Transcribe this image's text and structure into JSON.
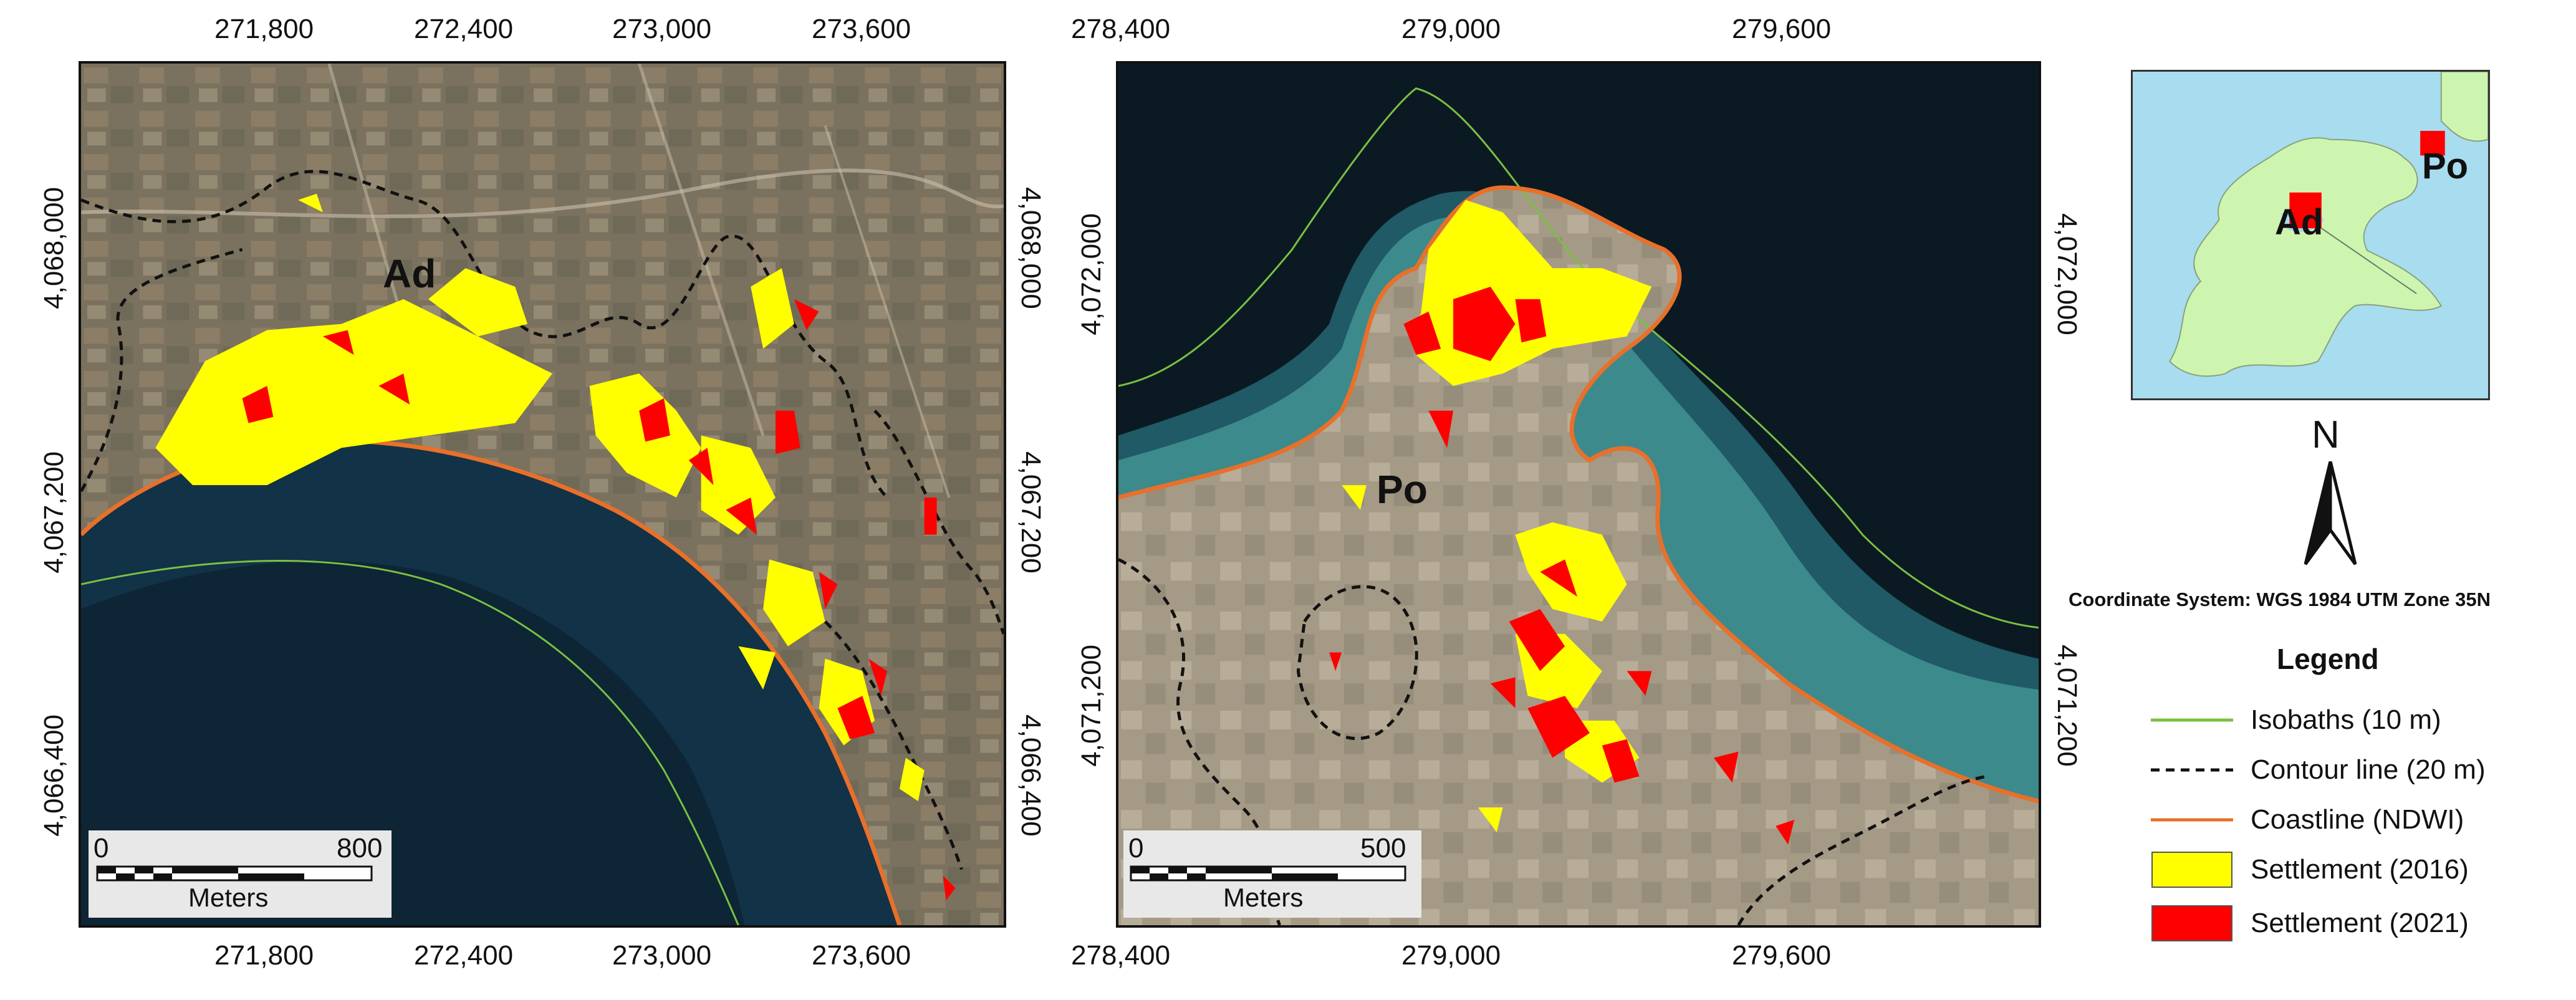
{
  "map_a": {
    "top_ticks": [
      "271,800",
      "272,400",
      "273,000",
      "273,600"
    ],
    "bottom_ticks": [
      "271,800",
      "272,400",
      "273,000",
      "273,600"
    ],
    "left_ticks": [
      "4,068,000",
      "4,067,200",
      "4,066,400"
    ],
    "right_ticks": [
      "4,068,000",
      "4,067,200",
      "4,066,400"
    ],
    "place_label": "Ad",
    "scale": {
      "zero": "0",
      "max": "800",
      "unit": "Meters"
    }
  },
  "map_b": {
    "top_ticks": [
      "278,400",
      "279,000",
      "279,600"
    ],
    "bottom_ticks": [
      "278,400",
      "279,000",
      "279,600"
    ],
    "left_ticks": [
      "4,072,000",
      "4,071,200"
    ],
    "right_ticks": [
      "4,072,000",
      "4,071,200"
    ],
    "place_label": "Po",
    "scale": {
      "zero": "0",
      "max": "500",
      "unit": "Meters"
    }
  },
  "inset": {
    "labels": [
      "Ad",
      "Po"
    ]
  },
  "north_arrow": {
    "label": "N"
  },
  "coordinate_system": "Coordinate System: WGS 1984 UTM Zone 35N",
  "legend": {
    "title": "Legend",
    "items": [
      {
        "label": "Isobaths (10 m)",
        "symbol": "line",
        "color": "#7bc043"
      },
      {
        "label": "Contour line (20 m)",
        "symbol": "dashed-line",
        "color": "#111111"
      },
      {
        "label": "Coastline (NDWI)",
        "symbol": "line",
        "color": "#e8702a"
      },
      {
        "label": "Settlement (2016)",
        "symbol": "fill",
        "color": "#ffff00"
      },
      {
        "label": "Settlement (2021)",
        "symbol": "fill",
        "color": "#ff0000"
      }
    ]
  },
  "colors": {
    "settlement_2016": "#ffff00",
    "settlement_2021": "#ff0000",
    "coastline": "#e8702a",
    "isobath": "#7bc043",
    "sea_inset": "#a8dcef",
    "land_inset": "#cdf5b0"
  }
}
